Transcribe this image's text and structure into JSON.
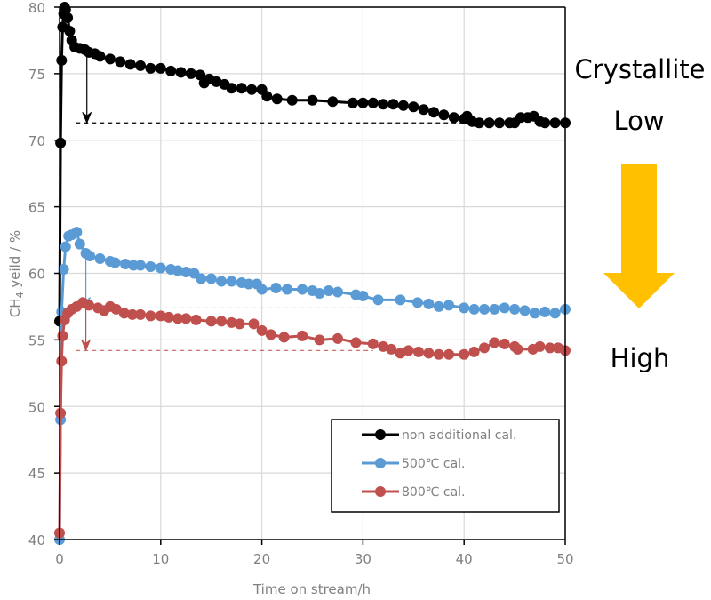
{
  "chart_data": {
    "type": "line",
    "title": "",
    "xlabel": "Time on stream/h",
    "ylabel_main": "CH",
    "ylabel_sub": "4",
    "ylabel_rest": " yeild / %",
    "xlim": [
      0,
      50
    ],
    "ylim": [
      40,
      80
    ],
    "xticks": [
      0,
      10,
      20,
      30,
      40,
      50
    ],
    "xtick_labels": [
      "0",
      "10",
      "20",
      "30",
      "40",
      "50"
    ],
    "yticks": [
      40,
      45,
      50,
      55,
      60,
      65,
      70,
      75,
      80
    ],
    "ytick_labels": [
      "40",
      "45",
      "50",
      "55",
      "60",
      "65",
      "70",
      "75",
      "80"
    ],
    "grid": true,
    "legend_position": "bottom-right",
    "series": [
      {
        "name": "non additional cal.",
        "color": "#000000",
        "x": [
          0,
          0.1,
          0.2,
          0.3,
          0.4,
          0.5,
          0.6,
          0.8,
          1.0,
          1.2,
          1.5,
          2.0,
          2.5,
          2.9,
          3.5,
          4.0,
          5.0,
          6.0,
          7.0,
          8.0,
          9.0,
          10.0,
          11.0,
          12.0,
          13.0,
          13.9,
          14.3,
          14.8,
          15.5,
          16.3,
          17.0,
          18.0,
          19.0,
          20.0,
          20.5,
          21.5,
          23.0,
          25.0,
          27.0,
          29.0,
          30.0,
          31.0,
          32.0,
          33.0,
          34.0,
          35.0,
          36.0,
          37.0,
          38.0,
          39.0,
          40.0,
          40.3,
          40.8,
          41.5,
          42.5,
          43.5,
          44.5,
          45.0,
          45.6,
          46.3,
          46.9,
          47.5,
          48.0,
          49.0,
          50.0
        ],
        "y": [
          56.4,
          69.8,
          76.0,
          78.5,
          79.5,
          80.0,
          79.8,
          79.2,
          78.2,
          77.5,
          77.0,
          76.9,
          76.8,
          76.6,
          76.5,
          76.3,
          76.1,
          75.9,
          75.7,
          75.6,
          75.4,
          75.4,
          75.2,
          75.1,
          75.0,
          74.9,
          74.3,
          74.6,
          74.4,
          74.2,
          73.9,
          73.9,
          73.8,
          73.8,
          73.3,
          73.1,
          73.0,
          73.0,
          72.9,
          72.8,
          72.8,
          72.8,
          72.7,
          72.7,
          72.6,
          72.5,
          72.3,
          72.1,
          71.9,
          71.7,
          71.6,
          71.8,
          71.4,
          71.3,
          71.3,
          71.3,
          71.3,
          71.3,
          71.7,
          71.7,
          71.8,
          71.4,
          71.3,
          71.3,
          71.3
        ]
      },
      {
        "name": "500℃ cal.",
        "color": "#5b9bd5",
        "x": [
          0,
          0.1,
          0.2,
          0.4,
          0.6,
          0.9,
          1.2,
          1.7,
          2.0,
          2.6,
          3.0,
          4.0,
          5.0,
          5.5,
          6.5,
          7.3,
          8.0,
          9.0,
          10.0,
          11.0,
          11.7,
          12.5,
          13.3,
          14.0,
          15.0,
          16.0,
          17.0,
          18.0,
          18.7,
          19.5,
          20.0,
          21.4,
          22.5,
          24.0,
          25.0,
          25.7,
          26.6,
          27.5,
          29.3,
          30.0,
          31.5,
          33.7,
          35.4,
          36.5,
          37.5,
          38.5,
          40.0,
          41.0,
          42.0,
          43.0,
          44.0,
          45.0,
          46.0,
          47.0,
          48.0,
          49.0,
          50.0
        ],
        "y": [
          40.0,
          49.0,
          57.1,
          60.3,
          62.0,
          62.8,
          62.9,
          63.1,
          62.2,
          61.5,
          61.3,
          61.1,
          60.9,
          60.8,
          60.7,
          60.6,
          60.6,
          60.5,
          60.4,
          60.3,
          60.2,
          60.1,
          60.0,
          59.6,
          59.6,
          59.4,
          59.4,
          59.3,
          59.2,
          59.2,
          58.8,
          58.9,
          58.8,
          58.8,
          58.7,
          58.5,
          58.7,
          58.6,
          58.4,
          58.3,
          58.0,
          58.0,
          57.8,
          57.7,
          57.5,
          57.6,
          57.4,
          57.3,
          57.3,
          57.3,
          57.4,
          57.3,
          57.2,
          57.0,
          57.1,
          57.0,
          57.3
        ]
      },
      {
        "name": "800℃ cal.",
        "color": "#c0504d",
        "x": [
          0,
          0.1,
          0.2,
          0.3,
          0.5,
          0.8,
          1.2,
          1.7,
          2.3,
          2.9,
          3.8,
          4.4,
          5.0,
          5.6,
          6.4,
          7.2,
          8.0,
          9.0,
          10.0,
          10.8,
          11.7,
          12.5,
          13.5,
          15.0,
          16.0,
          17.0,
          17.8,
          19.2,
          20.0,
          20.9,
          22.2,
          24.0,
          25.7,
          27.5,
          29.3,
          31.0,
          32.0,
          32.8,
          33.7,
          34.5,
          35.5,
          36.5,
          37.5,
          38.5,
          40.0,
          41.0,
          42.0,
          43.0,
          44.0,
          45.0,
          45.3,
          46.8,
          47.5,
          48.5,
          49.3,
          50.0
        ],
        "y": [
          40.5,
          49.5,
          53.4,
          55.3,
          56.5,
          57.0,
          57.3,
          57.5,
          57.8,
          57.6,
          57.4,
          57.2,
          57.5,
          57.3,
          57.0,
          56.9,
          56.9,
          56.8,
          56.8,
          56.7,
          56.6,
          56.6,
          56.5,
          56.4,
          56.4,
          56.3,
          56.2,
          56.2,
          55.7,
          55.4,
          55.2,
          55.3,
          55.0,
          55.1,
          54.8,
          54.7,
          54.5,
          54.3,
          54.0,
          54.2,
          54.1,
          54.0,
          53.9,
          53.9,
          53.9,
          54.1,
          54.4,
          54.8,
          54.7,
          54.5,
          54.3,
          54.3,
          54.5,
          54.4,
          54.4,
          54.2
        ]
      }
    ],
    "reference_lines": [
      {
        "name": "non additional cal. reference",
        "color": "#000000",
        "y": 71.3,
        "x_start": 1.6,
        "x_end": 40.0,
        "arrow_x": 2.7,
        "arrow_from": 76.6
      },
      {
        "name": "500℃ cal. reference",
        "color": "#5b9bd5",
        "y": 57.4,
        "x_start": 1.6,
        "x_end": 34.5,
        "arrow_x": 2.6,
        "arrow_from": 61.5
      },
      {
        "name": "800℃ cal. reference",
        "color": "#c0504d",
        "y": 54.2,
        "x_start": 1.6,
        "x_end": 31.0,
        "arrow_x": 2.6,
        "arrow_from": 57.6
      }
    ],
    "annotations": {
      "title": "Crystallite",
      "low": "Low",
      "high": "High",
      "arrow_color": "#ffc000"
    }
  }
}
